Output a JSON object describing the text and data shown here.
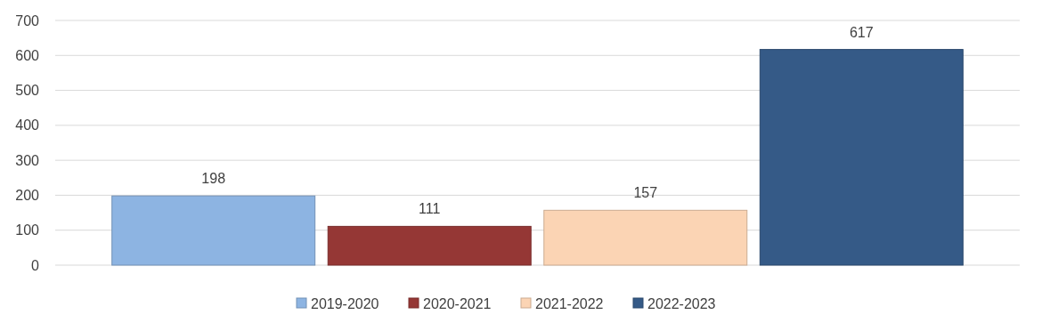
{
  "chart_data": {
    "type": "bar",
    "categories": [
      null
    ],
    "series": [
      {
        "name": "2019-2020",
        "color": "#8db4e2",
        "values": [
          198
        ]
      },
      {
        "name": "2020-2021",
        "color": "#953735",
        "values": [
          111
        ]
      },
      {
        "name": "2021-2022",
        "color": "#fbd4b4",
        "values": [
          157
        ]
      },
      {
        "name": "2022-2023",
        "color": "#355a87",
        "values": [
          617
        ]
      }
    ],
    "ylim": [
      0,
      700
    ],
    "yticks": [
      0,
      100,
      200,
      300,
      400,
      500,
      600,
      700
    ],
    "grid": "y",
    "legend": "bottom",
    "data_labels": true
  }
}
